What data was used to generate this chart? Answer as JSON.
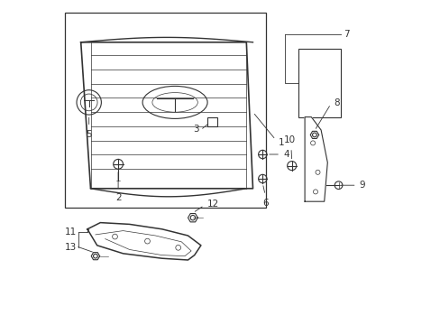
{
  "bg_color": "#ffffff",
  "line_color": "#333333",
  "label_color": "#000000"
}
